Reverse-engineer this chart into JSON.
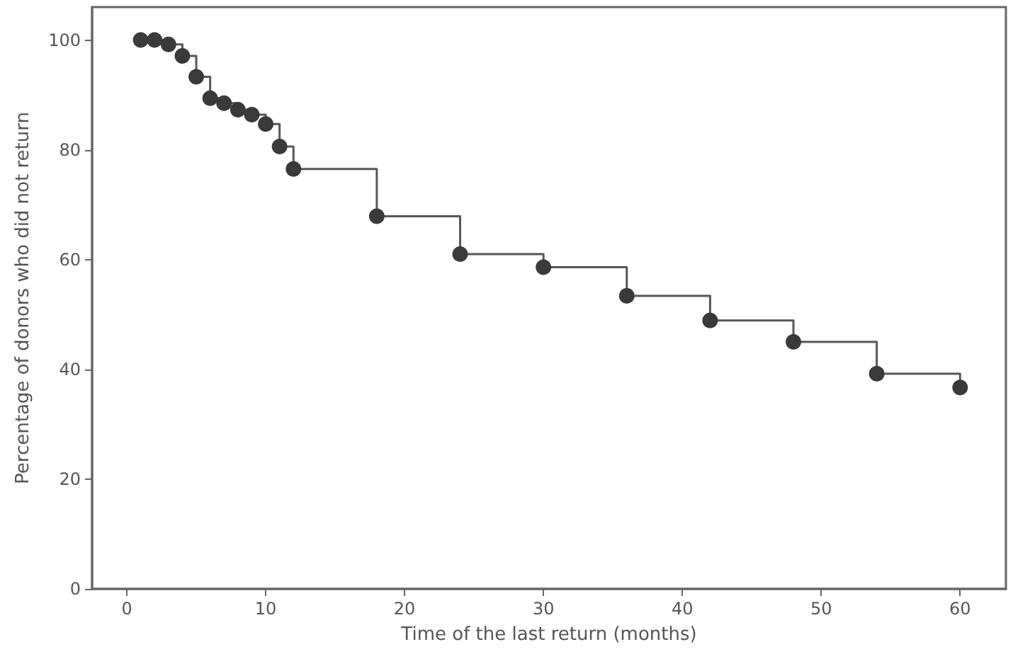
{
  "chart_data": {
    "type": "step",
    "xlabel": "Time of the last return (months)",
    "ylabel": "Percentage of donors who did not return",
    "x": [
      1,
      2,
      3,
      4,
      5,
      6,
      7,
      8,
      9,
      10,
      11,
      12,
      18,
      24,
      30,
      36,
      42,
      48,
      54,
      60
    ],
    "values": [
      100,
      100,
      99.2,
      97.1,
      93.3,
      89.4,
      88.5,
      87.3,
      86.4,
      84.7,
      80.6,
      76.5,
      67.9,
      61,
      58.6,
      53.4,
      48.9,
      45,
      39.2,
      36.7
    ],
    "color": "#3a3a3a",
    "marker": "circle",
    "line_style": "solid",
    "grid": false,
    "xlim": [
      -2.5,
      63.3
    ],
    "xticks": [
      0,
      10,
      20,
      30,
      40,
      50,
      60
    ],
    "ylim": [
      0,
      106
    ],
    "yticks": [
      0,
      20,
      40,
      60,
      80,
      100
    ]
  }
}
